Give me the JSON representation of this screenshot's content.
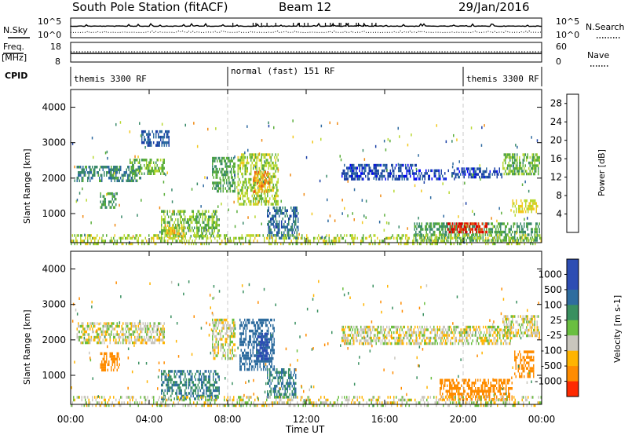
{
  "chart_data": {
    "type": "heatmap",
    "title": "South Pole Station (fitACF)",
    "beam": "Beam 12",
    "date": "29/Jan/2016",
    "xlabel": "Time UT",
    "x_ticks": [
      "00:00",
      "04:00",
      "08:00",
      "12:00",
      "16:00",
      "20:00",
      "00:00"
    ],
    "mode_boundaries_ut": [
      8,
      20
    ],
    "header_panels": {
      "nsky": {
        "label": "N.Sky",
        "ticks": [
          "10^5",
          "10^0"
        ]
      },
      "nsearch": {
        "label": "N.Search",
        "ticks": [
          "10^5",
          "10^0"
        ]
      },
      "freq": {
        "label_line1": "Freq.",
        "label_line2": "[MHz]",
        "ticks": [
          "18",
          "8"
        ]
      },
      "nave": {
        "label": "Nave",
        "ticks": [
          "60",
          "0"
        ]
      },
      "cpid": {
        "label": "CPID",
        "segments": [
          {
            "start_ut": 0,
            "end_ut": 8,
            "label": "themis 3300 RF"
          },
          {
            "start_ut": 8,
            "end_ut": 20,
            "label": "normal (fast) 151 RF"
          },
          {
            "start_ut": 20,
            "end_ut": 24,
            "label": "themis 3300 RF"
          }
        ]
      }
    },
    "power_panel": {
      "ylabel": "Slant Range [km]",
      "yticks": [
        "1000",
        "2000",
        "3000",
        "4000"
      ],
      "ylim": [
        180,
        4500
      ],
      "colorbar": {
        "label": "Power [dB]",
        "ticks": [
          "4",
          "8",
          "12",
          "16",
          "20",
          "24",
          "28"
        ],
        "range": [
          0,
          30
        ]
      },
      "regions": [
        {
          "t0": 0.3,
          "t1": 3.6,
          "r0": 1950,
          "r1": 2350,
          "level": 10
        },
        {
          "t0": 3.0,
          "t1": 4.8,
          "r0": 2150,
          "r1": 2550,
          "level": 14
        },
        {
          "t0": 3.6,
          "t1": 5.0,
          "r0": 2950,
          "r1": 3350,
          "level": 6
        },
        {
          "t0": 1.5,
          "t1": 2.4,
          "r0": 1150,
          "r1": 1600,
          "level": 12
        },
        {
          "t0": 4.6,
          "t1": 7.6,
          "r0": 400,
          "r1": 1100,
          "level": 14
        },
        {
          "t0": 4.8,
          "t1": 5.8,
          "r0": 350,
          "r1": 700,
          "level": 20
        },
        {
          "t0": 7.2,
          "t1": 8.4,
          "r0": 1600,
          "r1": 2600,
          "level": 12
        },
        {
          "t0": 8.5,
          "t1": 10.6,
          "r0": 1300,
          "r1": 2700,
          "level": 16
        },
        {
          "t0": 9.3,
          "t1": 10.1,
          "r0": 1600,
          "r1": 2200,
          "level": 22
        },
        {
          "t0": 10.0,
          "t1": 11.6,
          "r0": 300,
          "r1": 1200,
          "level": 8
        },
        {
          "t0": 13.8,
          "t1": 17.6,
          "r0": 1950,
          "r1": 2400,
          "level": 5
        },
        {
          "t0": 17.6,
          "t1": 19.6,
          "r0": 2000,
          "r1": 2250,
          "level": 4
        },
        {
          "t0": 19.6,
          "t1": 22.0,
          "r0": 2000,
          "r1": 2300,
          "level": 5
        },
        {
          "t0": 22.0,
          "t1": 23.9,
          "r0": 2100,
          "r1": 2700,
          "level": 14
        },
        {
          "t0": 17.5,
          "t1": 23.9,
          "r0": 250,
          "r1": 750,
          "level": 12
        },
        {
          "t0": 19.2,
          "t1": 21.2,
          "r0": 450,
          "r1": 750,
          "level": 27
        },
        {
          "t0": 22.5,
          "t1": 23.8,
          "r0": 1050,
          "r1": 1400,
          "level": 18
        },
        {
          "t0": 0.0,
          "t1": 24.0,
          "r0": 180,
          "r1": 420,
          "level": 16
        }
      ]
    },
    "velocity_panel": {
      "ylabel": "Slant Range [km]",
      "yticks": [
        "1000",
        "2000",
        "3000",
        "4000"
      ],
      "ylim": [
        180,
        4500
      ],
      "colorbar": {
        "label": "Velocity [m s-1]",
        "ticks": [
          "1000",
          "500",
          "100",
          "25",
          "-25",
          "-100",
          "-500",
          "-1000"
        ]
      },
      "regions": [
        {
          "t0": 0.3,
          "t1": 4.8,
          "r0": 1950,
          "r1": 2500,
          "vel": 0
        },
        {
          "t0": 1.5,
          "t1": 2.5,
          "r0": 1150,
          "r1": 1650,
          "vel": -200
        },
        {
          "t0": 4.6,
          "t1": 7.6,
          "r0": 350,
          "r1": 1150,
          "vel": 300
        },
        {
          "t0": 7.2,
          "t1": 8.4,
          "r0": 1500,
          "r1": 2600,
          "vel": 0
        },
        {
          "t0": 8.6,
          "t1": 10.4,
          "r0": 1200,
          "r1": 2600,
          "vel": 500
        },
        {
          "t0": 9.5,
          "t1": 10.1,
          "r0": 1500,
          "r1": 2200,
          "vel": 1000
        },
        {
          "t0": 10.0,
          "t1": 11.5,
          "r0": 400,
          "r1": 1200,
          "vel": 300
        },
        {
          "t0": 13.8,
          "t1": 22.5,
          "r0": 1900,
          "r1": 2400,
          "vel": 0
        },
        {
          "t0": 22.0,
          "t1": 23.9,
          "r0": 2100,
          "r1": 2700,
          "vel": 0
        },
        {
          "t0": 18.8,
          "t1": 22.5,
          "r0": 350,
          "r1": 900,
          "vel": -300
        },
        {
          "t0": 22.6,
          "t1": 23.6,
          "r0": 1000,
          "r1": 1700,
          "vel": -300
        },
        {
          "t0": 0.0,
          "t1": 24.0,
          "r0": 180,
          "r1": 420,
          "vel": 0
        }
      ]
    }
  },
  "colors": {
    "power": [
      "#0000ff",
      "#1a3fa6",
      "#2e6aa0",
      "#3a8a6a",
      "#5aae3a",
      "#b8d832",
      "#f2c81e",
      "#f08a14",
      "#e84a0e",
      "#dc0000"
    ],
    "velocity": {
      "pos_1000": "#2d4db3",
      "pos_500": "#2f6d9f",
      "pos_100": "#3a9060",
      "pos_25": "#6abf40",
      "zero": "#c9c6bd",
      "neg_100": "#ffb400",
      "neg_500": "#ff8c00",
      "neg_1000": "#ff2a00"
    }
  }
}
